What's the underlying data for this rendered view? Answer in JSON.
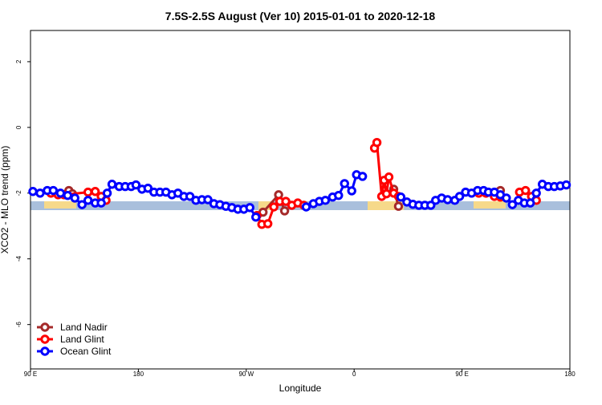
{
  "chart_data": {
    "type": "line",
    "title": "7.5S-2.5S August (Ver 10)   2015-01-01 to 2020-12-18",
    "xlabel": "Longitude",
    "ylabel": "XCO2 - MLO trend (ppm)",
    "xlim": [
      90,
      540
    ],
    "ylim": [
      -7.35,
      2.95
    ],
    "xticks": [
      {
        "value": 90,
        "label": "90 E"
      },
      180,
      {
        "value": 270,
        "label": "90 W"
      },
      {
        "value": 360,
        "label": "0"
      },
      {
        "value": 450,
        "label": "90 E"
      },
      {
        "value": 540,
        "label": "180"
      }
    ],
    "yticks": [
      -6,
      -4,
      -2,
      0,
      2
    ],
    "legend": "bottom-left",
    "series": [
      {
        "name": "Land Nadir",
        "color": "#a52a2a",
        "x": [
          122,
          125,
          200,
          284,
          297,
          302,
          340,
          393,
          397,
          440,
          482
        ],
        "values": [
          -1.92,
          -2.02,
          null,
          -2.58,
          -2.05,
          -2.54,
          null,
          -1.88,
          -2.4,
          null,
          -1.92
        ]
      },
      {
        "name": "Land Glint",
        "color": "#ff0000",
        "x": [
          107,
          113,
          118,
          138,
          144,
          149,
          153,
          200,
          279,
          283,
          288,
          293,
          298,
          303,
          308,
          313,
          318,
          350,
          377,
          379,
          383,
          385,
          387,
          389,
          393,
          397,
          430,
          464,
          470,
          477,
          482,
          490,
          498,
          503,
          508,
          512
        ],
        "values": [
          -2.0,
          -2.05,
          -2.05,
          -1.97,
          -1.95,
          -2.1,
          -2.22,
          null,
          -2.68,
          -2.95,
          -2.93,
          -2.42,
          -2.25,
          -2.25,
          -2.37,
          -2.3,
          -2.37,
          null,
          -0.63,
          -0.46,
          -2.1,
          -1.61,
          -2.02,
          -1.51,
          -2.0,
          -2.1,
          null,
          -2.0,
          -2.0,
          -2.1,
          -2.12,
          null,
          -1.97,
          -1.92,
          -2.1,
          -2.22
        ]
      },
      {
        "name": "Ocean Glint",
        "color": "#0000ff",
        "x": [
          92,
          98,
          104,
          109,
          115,
          121,
          127,
          133,
          138,
          144,
          149,
          154,
          158,
          164,
          169,
          174,
          178,
          183,
          188,
          193,
          198,
          203,
          208,
          213,
          218,
          223,
          228,
          233,
          238,
          243,
          248,
          253,
          258,
          263,
          268,
          273,
          278,
          300,
          320,
          326,
          331,
          336,
          342,
          347,
          352,
          358,
          362,
          367,
          385,
          399,
          404,
          409,
          414,
          419,
          424,
          428,
          433,
          438,
          444,
          448,
          453,
          458,
          463,
          468,
          472,
          477,
          482,
          487,
          492,
          497,
          502,
          507,
          512,
          517,
          522,
          527,
          532,
          537
        ],
        "values": [
          -1.95,
          -2.0,
          -1.92,
          -1.92,
          -2.0,
          -2.07,
          -2.15,
          -2.35,
          -2.22,
          -2.3,
          -2.3,
          -2.0,
          -1.73,
          -1.8,
          -1.8,
          -1.8,
          -1.75,
          -1.88,
          -1.85,
          -1.97,
          -1.97,
          -1.97,
          -2.05,
          -2.0,
          -2.1,
          -2.1,
          -2.22,
          -2.2,
          -2.2,
          -2.32,
          -2.35,
          -2.4,
          -2.44,
          -2.49,
          -2.49,
          -2.44,
          -2.73,
          null,
          -2.42,
          -2.32,
          -2.25,
          -2.22,
          -2.12,
          -2.07,
          -1.71,
          -1.93,
          -1.44,
          -1.49,
          null,
          -2.12,
          -2.27,
          -2.34,
          -2.37,
          -2.37,
          -2.37,
          -2.22,
          -2.15,
          -2.2,
          -2.22,
          -2.1,
          -1.97,
          -2.0,
          -1.92,
          -1.92,
          -1.97,
          -1.97,
          -2.05,
          -2.15,
          -2.35,
          -2.22,
          -2.3,
          -2.3,
          -2.0,
          -1.73,
          -1.8,
          -1.8,
          -1.78,
          -1.75
        ]
      }
    ]
  }
}
